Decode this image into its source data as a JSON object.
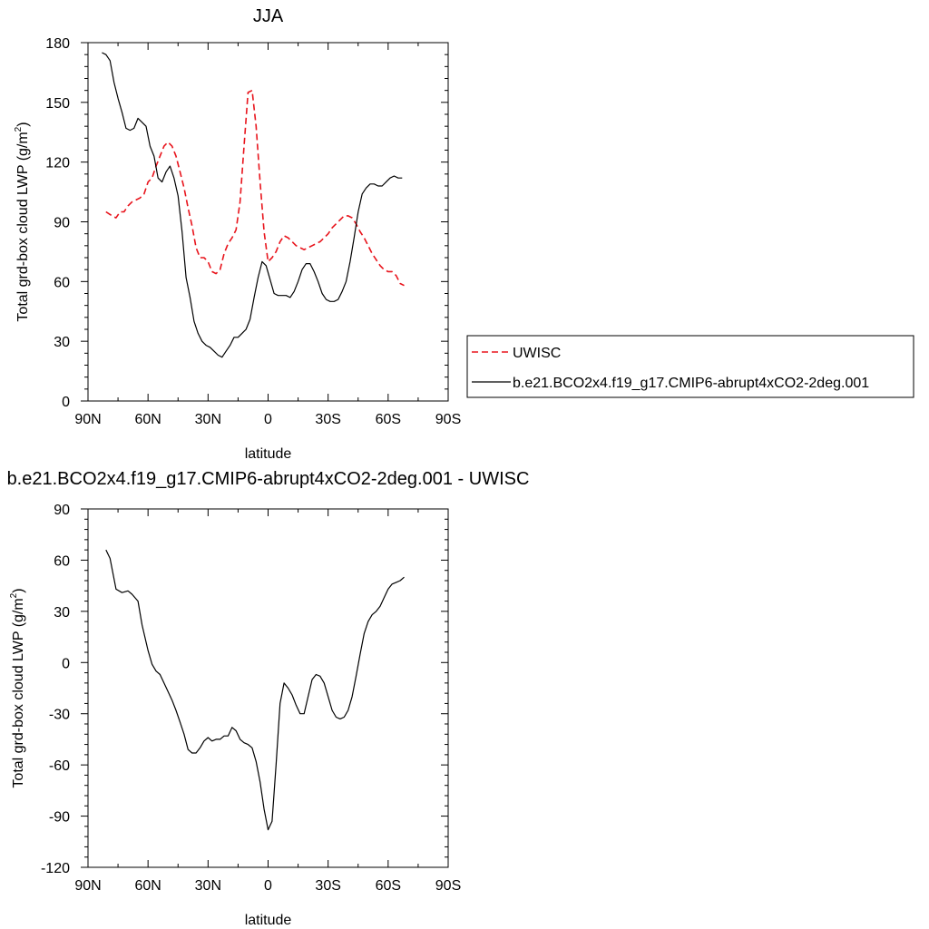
{
  "chart_data": [
    {
      "type": "line",
      "title": "JJA",
      "xlabel": "latitude",
      "ylabel": "Total grd-box cloud LWP (g/m",
      "ylabel_sup": "2",
      "ylabel_end": ")",
      "xlim": [
        90,
        -90
      ],
      "ylim": [
        0,
        180
      ],
      "xticks": [
        90,
        60,
        30,
        0,
        -30,
        -60,
        -90
      ],
      "xtick_labels": [
        "90N",
        "60N",
        "30N",
        "0",
        "30S",
        "60S",
        "90S"
      ],
      "yticks": [
        0,
        30,
        60,
        90,
        120,
        150,
        180
      ],
      "ytick_labels": [
        "0",
        "30",
        "60",
        "90",
        "120",
        "150",
        "180"
      ],
      "legend_position": "right",
      "series": [
        {
          "name": "UWISC",
          "color": "#e8141c",
          "dash": "dashed",
          "x": [
            81,
            78,
            76,
            74,
            72,
            70,
            68,
            66,
            64,
            62,
            60,
            58,
            56,
            54,
            52,
            50,
            48,
            46,
            44,
            42,
            40,
            38,
            36,
            34,
            32,
            30,
            28,
            26,
            24,
            22,
            20,
            18,
            16,
            14,
            12,
            10,
            8,
            6,
            4,
            2,
            0,
            -2,
            -4,
            -6,
            -8,
            -10,
            -12,
            -14,
            -16,
            -18,
            -20,
            -22,
            -24,
            -26,
            -28,
            -30,
            -32,
            -34,
            -36,
            -38,
            -40,
            -42,
            -44,
            -46,
            -48,
            -50,
            -52,
            -54,
            -56,
            -58,
            -60,
            -62,
            -64,
            -66,
            -68
          ],
          "y": [
            95,
            93,
            92,
            95,
            95,
            98,
            100,
            101,
            102,
            104,
            110,
            112,
            118,
            123,
            128,
            130,
            128,
            123,
            115,
            107,
            97,
            88,
            77,
            72,
            72,
            70,
            65,
            64,
            66,
            74,
            79,
            82,
            86,
            100,
            128,
            155,
            156,
            138,
            110,
            85,
            70,
            72,
            75,
            80,
            83,
            82,
            80,
            78,
            77,
            76,
            77,
            78,
            79,
            80,
            82,
            84,
            87,
            89,
            91,
            93,
            93,
            92,
            89,
            85,
            82,
            78,
            74,
            71,
            68,
            66,
            65,
            65,
            63,
            59,
            58
          ]
        },
        {
          "name": "b.e21.BCO2x4.f19_g17.CMIP6-abrupt4xCO2-2deg.001",
          "color": "#000000",
          "dash": "solid",
          "x": [
            83,
            81,
            79,
            77,
            75,
            73,
            71,
            69,
            67,
            65,
            63,
            61,
            59,
            57,
            55,
            53,
            51,
            49,
            47,
            45,
            43,
            41,
            39,
            37,
            35,
            33,
            31,
            29,
            27,
            25,
            23,
            21,
            19,
            17,
            15,
            13,
            11,
            9,
            7,
            5,
            3,
            1,
            -1,
            -3,
            -5,
            -7,
            -9,
            -11,
            -13,
            -15,
            -17,
            -19,
            -21,
            -23,
            -25,
            -27,
            -29,
            -31,
            -33,
            -35,
            -37,
            -39,
            -41,
            -43,
            -45,
            -47,
            -49,
            -51,
            -53,
            -55,
            -57,
            -59,
            -61,
            -63,
            -65,
            -67
          ],
          "y": [
            175,
            174,
            171,
            160,
            152,
            145,
            137,
            136,
            137,
            142,
            140,
            138,
            128,
            123,
            112,
            110,
            115,
            118,
            112,
            103,
            85,
            62,
            52,
            40,
            34,
            30,
            28,
            27,
            25,
            23,
            22,
            25,
            28,
            32,
            32,
            34,
            36,
            41,
            52,
            62,
            70,
            68,
            61,
            54,
            53,
            53,
            53,
            52,
            55,
            60,
            66,
            69,
            69,
            65,
            60,
            54,
            51,
            50,
            50,
            51,
            55,
            60,
            70,
            82,
            95,
            104,
            107,
            109,
            109,
            108,
            108,
            110,
            112,
            113,
            112,
            112
          ]
        }
      ]
    },
    {
      "type": "line",
      "title": "b.e21.BCO2x4.f19_g17.CMIP6-abrupt4xCO2-2deg.001 - UWISC",
      "xlabel": "latitude",
      "ylabel": "Total grd-box cloud LWP (g/m",
      "ylabel_sup": "2",
      "ylabel_end": ")",
      "xlim": [
        90,
        -90
      ],
      "ylim": [
        -120,
        90
      ],
      "xticks": [
        90,
        60,
        30,
        0,
        -30,
        -60,
        -90
      ],
      "xtick_labels": [
        "90N",
        "60N",
        "30N",
        "0",
        "30S",
        "60S",
        "90S"
      ],
      "yticks": [
        -120,
        -90,
        -60,
        -30,
        0,
        30,
        60,
        90
      ],
      "ytick_labels": [
        "-120",
        "-90",
        "-60",
        "-30",
        "0",
        "30",
        "60",
        "90"
      ],
      "series": [
        {
          "color": "#000000",
          "dash": "solid",
          "x": [
            81,
            79,
            76,
            73,
            70,
            68,
            65,
            63,
            60,
            58,
            56,
            54,
            52,
            50,
            48,
            46,
            44,
            42,
            40,
            38,
            36,
            34,
            32,
            30,
            28,
            26,
            24,
            22,
            20,
            18,
            16,
            14,
            12,
            10,
            8,
            6,
            4,
            2,
            0,
            -2,
            -4,
            -6,
            -8,
            -10,
            -12,
            -14,
            -16,
            -18,
            -20,
            -22,
            -24,
            -26,
            -28,
            -30,
            -32,
            -34,
            -36,
            -38,
            -40,
            -42,
            -44,
            -46,
            -48,
            -50,
            -52,
            -54,
            -56,
            -58,
            -60,
            -62,
            -64,
            -66,
            -68
          ],
          "y": [
            66,
            61,
            43,
            41,
            42,
            40,
            36,
            22,
            7,
            -1,
            -5,
            -7,
            -12,
            -17,
            -22,
            -28,
            -35,
            -42,
            -51,
            -53,
            -53,
            -50,
            -46,
            -44,
            -46,
            -45,
            -45,
            -43,
            -43,
            -38,
            -40,
            -45,
            -47,
            -48,
            -50,
            -58,
            -70,
            -86,
            -98,
            -93,
            -60,
            -24,
            -12,
            -15,
            -19,
            -25,
            -30,
            -30,
            -20,
            -10,
            -7,
            -8,
            -12,
            -20,
            -28,
            -32,
            -33,
            -32,
            -28,
            -20,
            -8,
            5,
            17,
            24,
            28,
            30,
            33,
            38,
            43,
            46,
            47,
            48,
            50
          ]
        }
      ]
    }
  ]
}
